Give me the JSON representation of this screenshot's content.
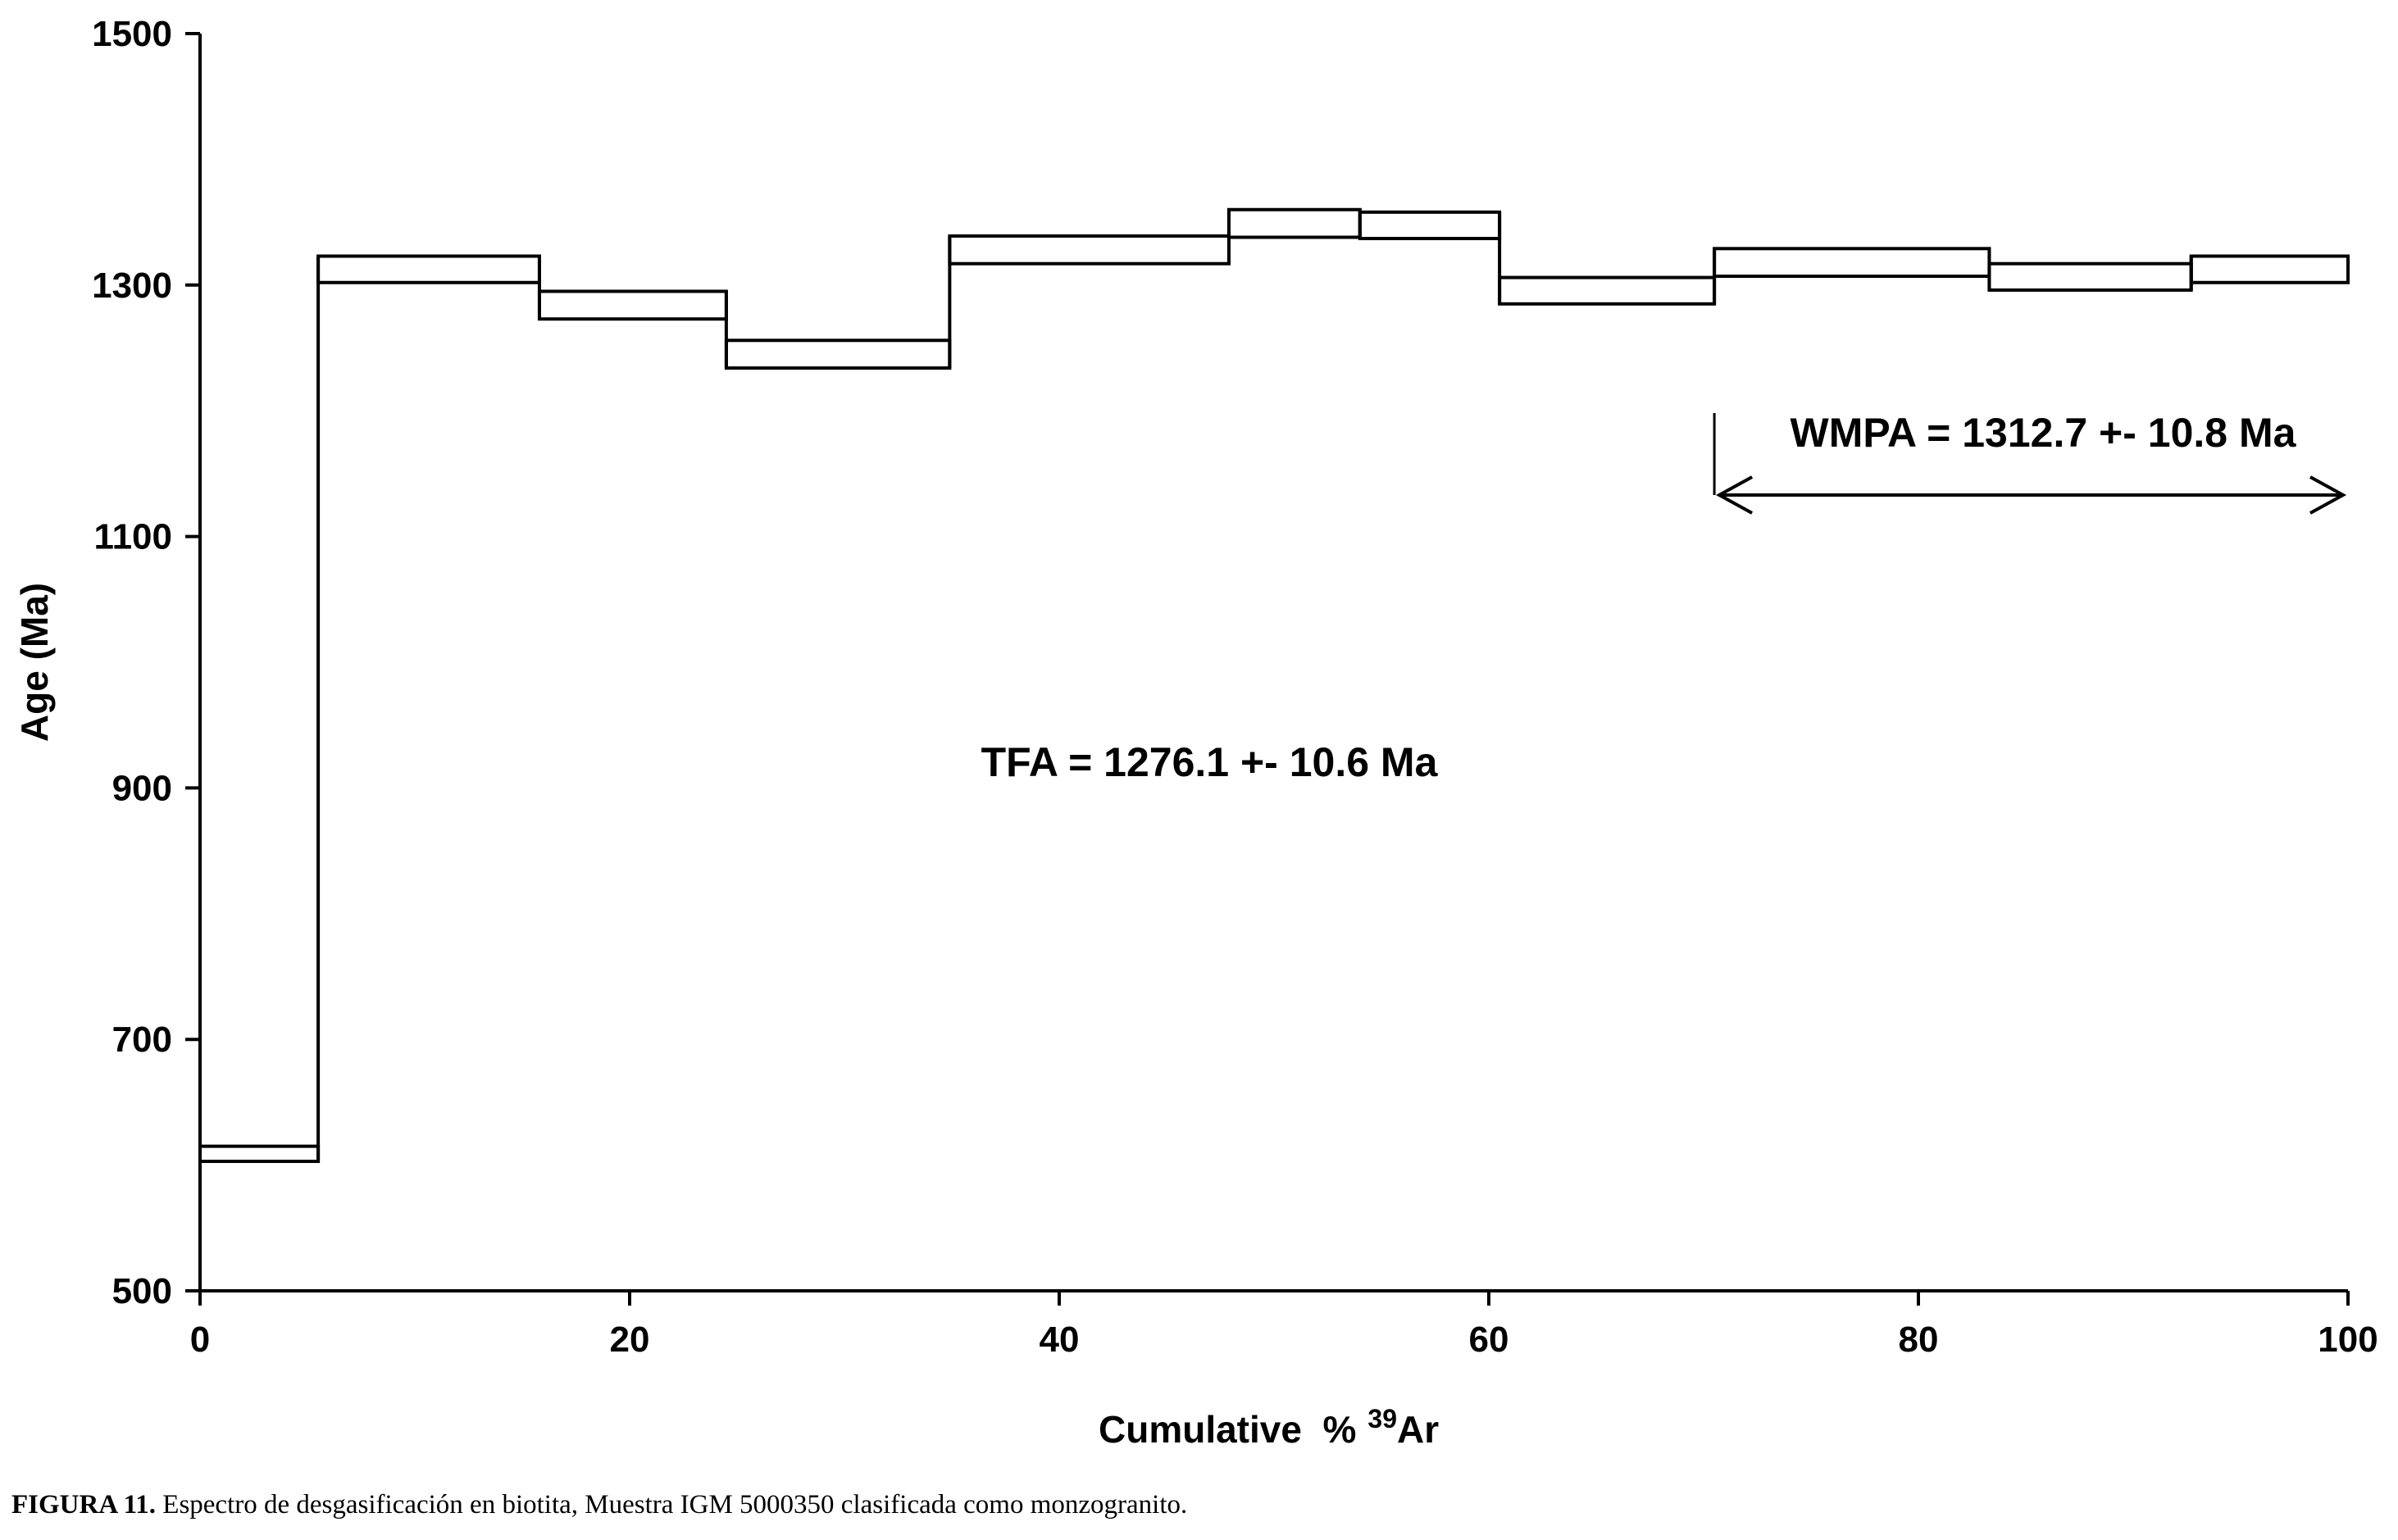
{
  "chart_data": {
    "type": "step",
    "xlabel": "Cumulative  %",
    "xlabel_sup": "39",
    "xlabel_suffix": "Ar",
    "ylabel": "Age (Ma)",
    "xlim": [
      0,
      100
    ],
    "ylim": [
      500,
      1500
    ],
    "xticks": [
      0,
      20,
      40,
      60,
      80,
      100
    ],
    "yticks": [
      500,
      700,
      900,
      1100,
      1300,
      1500
    ],
    "grid": false,
    "steps": [
      {
        "x0": 0,
        "x1": 5.5,
        "y_low": 603,
        "y_high": 615
      },
      {
        "x0": 5.5,
        "x1": 15.8,
        "y_low": 1302,
        "y_high": 1323
      },
      {
        "x0": 15.8,
        "x1": 24.5,
        "y_low": 1273,
        "y_high": 1295
      },
      {
        "x0": 24.5,
        "x1": 34.9,
        "y_low": 1234,
        "y_high": 1256
      },
      {
        "x0": 34.9,
        "x1": 47.9,
        "y_low": 1317,
        "y_high": 1339
      },
      {
        "x0": 47.9,
        "x1": 54.0,
        "y_low": 1338,
        "y_high": 1360
      },
      {
        "x0": 54.0,
        "x1": 60.5,
        "y_low": 1337,
        "y_high": 1358
      },
      {
        "x0": 60.5,
        "x1": 70.5,
        "y_low": 1285,
        "y_high": 1306
      },
      {
        "x0": 70.5,
        "x1": 83.3,
        "y_low": 1307,
        "y_high": 1329
      },
      {
        "x0": 83.3,
        "x1": 92.7,
        "y_low": 1296,
        "y_high": 1317
      },
      {
        "x0": 92.7,
        "x1": 100,
        "y_low": 1302,
        "y_high": 1323
      }
    ],
    "annotations": {
      "wmpa": {
        "text": "WMPA = 1312.7 +- 10.8 Ma",
        "x_start": 70.5,
        "x_end": 100,
        "arrow_y": 1133
      },
      "tfa": {
        "text": "TFA = 1276.1 +- 10.6 Ma"
      }
    }
  },
  "caption": {
    "label": "FIGURA 11.",
    "text": " Espectro de desgasificación en biotita, Muestra IGM 5000350 clasificada como monzogranito."
  }
}
